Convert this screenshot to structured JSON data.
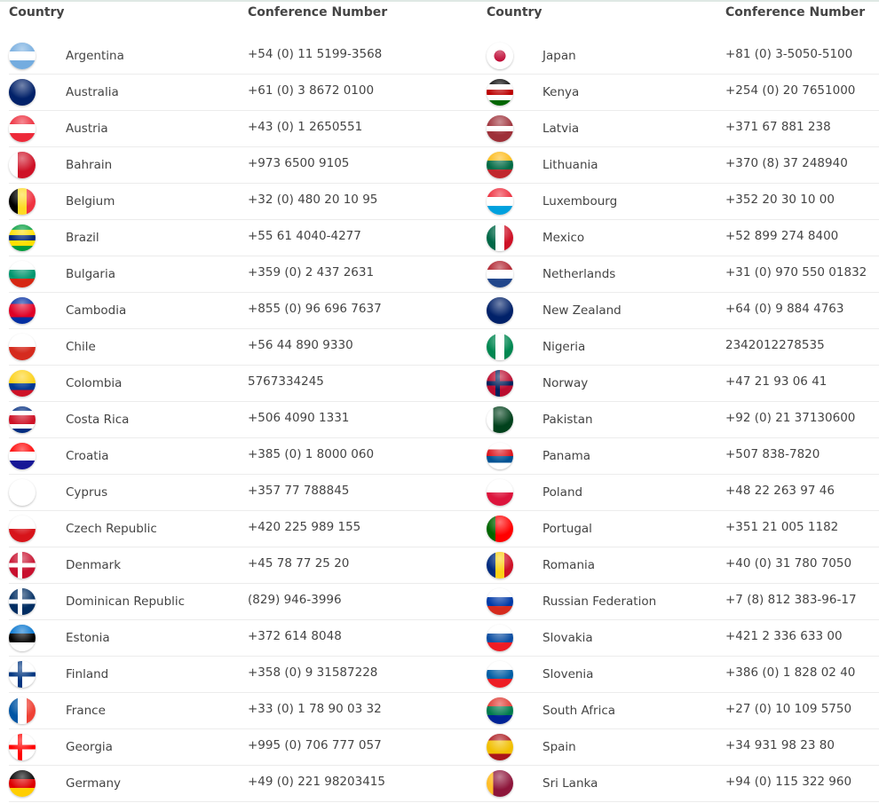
{
  "headers": {
    "country": "Country",
    "number": "Conference Number"
  },
  "left": [
    {
      "country": "Argentina",
      "number": "+54 (0) 11 5199-3568",
      "flag": {
        "dir": "h",
        "colors": [
          "#74acdf",
          "#ffffff",
          "#74acdf"
        ]
      }
    },
    {
      "country": "Australia",
      "number": "+61 (0) 3 8672 0100",
      "flag": {
        "dir": "h",
        "colors": [
          "#012169"
        ]
      }
    },
    {
      "country": "Austria",
      "number": "+43 (0) 1 2650551",
      "flag": {
        "dir": "h",
        "colors": [
          "#ed2939",
          "#ffffff",
          "#ed2939"
        ]
      }
    },
    {
      "country": "Bahrain",
      "number": "+973 6500 9105",
      "flag": {
        "dir": "v",
        "colors": [
          "#ffffff",
          "#ce1126",
          "#ce1126"
        ]
      }
    },
    {
      "country": "Belgium",
      "number": "+32 (0) 480 20 10 95",
      "flag": {
        "dir": "v",
        "colors": [
          "#000000",
          "#fdda24",
          "#ef3340"
        ]
      }
    },
    {
      "country": "Brazil",
      "number": "+55 61 4040-4277",
      "flag": {
        "dir": "h",
        "colors": [
          "#009c3b",
          "#ffdf00",
          "#002776",
          "#ffdf00",
          "#009c3b"
        ]
      }
    },
    {
      "country": "Bulgaria",
      "number": "+359 (0) 2 437 2631",
      "flag": {
        "dir": "h",
        "colors": [
          "#ffffff",
          "#00966e",
          "#d62612"
        ]
      }
    },
    {
      "country": "Cambodia",
      "number": "+855 (0) 96 696 7637",
      "flag": {
        "dir": "h",
        "colors": [
          "#032ea1",
          "#e00025",
          "#e00025",
          "#032ea1"
        ]
      }
    },
    {
      "country": "Chile",
      "number": "+56 44 890 9330",
      "flag": {
        "dir": "h",
        "colors": [
          "#ffffff",
          "#d52b1e"
        ]
      }
    },
    {
      "country": "Colombia",
      "number": "5767334245",
      "flag": {
        "dir": "h",
        "colors": [
          "#fcd116",
          "#fcd116",
          "#003893",
          "#ce1126"
        ]
      }
    },
    {
      "country": "Costa Rica",
      "number": "+506 4090 1331",
      "flag": {
        "dir": "h",
        "colors": [
          "#002b7f",
          "#ffffff",
          "#ce1126",
          "#ce1126",
          "#ffffff",
          "#002b7f"
        ]
      }
    },
    {
      "country": "Croatia",
      "number": "+385 (0) 1 8000 060",
      "flag": {
        "dir": "h",
        "colors": [
          "#ff0000",
          "#ffffff",
          "#171796"
        ]
      }
    },
    {
      "country": "Cyprus",
      "number": "+357 77 788845",
      "flag": {
        "dir": "h",
        "colors": [
          "#ffffff"
        ]
      }
    },
    {
      "country": "Czech Republic",
      "number": "+420 225 989 155",
      "flag": {
        "dir": "h",
        "colors": [
          "#ffffff",
          "#d7141a"
        ]
      }
    },
    {
      "country": "Denmark",
      "number": "+45 78 77 25 20",
      "flag": {
        "dir": "cross",
        "colors": [
          "#c8102e",
          "#ffffff"
        ]
      }
    },
    {
      "country": "Dominican Republic",
      "number": "(829) 946-3996",
      "flag": {
        "dir": "cross",
        "colors": [
          "#002d62",
          "#ffffff"
        ]
      }
    },
    {
      "country": "Estonia",
      "number": "+372 614 8048",
      "flag": {
        "dir": "h",
        "colors": [
          "#0072ce",
          "#000000",
          "#ffffff"
        ]
      }
    },
    {
      "country": "Finland",
      "number": "+358 (0) 9 31587228",
      "flag": {
        "dir": "cross",
        "colors": [
          "#ffffff",
          "#003580"
        ]
      }
    },
    {
      "country": "France",
      "number": "+33 (0) 1 78 90 03 32",
      "flag": {
        "dir": "v",
        "colors": [
          "#0055a4",
          "#ffffff",
          "#ef4135"
        ]
      }
    },
    {
      "country": "Georgia",
      "number": "+995 (0) 706 777 057",
      "flag": {
        "dir": "cross",
        "colors": [
          "#ffffff",
          "#ff0000"
        ]
      }
    },
    {
      "country": "Germany",
      "number": "+49 (0) 221 98203415",
      "flag": {
        "dir": "h",
        "colors": [
          "#000000",
          "#dd0000",
          "#ffce00"
        ]
      }
    }
  ],
  "right": [
    {
      "country": "Japan",
      "number": "+81 (0) 3-5050-5100",
      "flag": {
        "dir": "disc",
        "colors": [
          "#ffffff",
          "#bc002d"
        ]
      }
    },
    {
      "country": "Kenya",
      "number": "+254 (0) 20 7651000",
      "flag": {
        "dir": "h",
        "colors": [
          "#000000",
          "#ffffff",
          "#bb0000",
          "#ffffff",
          "#006600"
        ]
      }
    },
    {
      "country": "Latvia",
      "number": "+371 67 881 238",
      "flag": {
        "dir": "h",
        "colors": [
          "#9e3039",
          "#9e3039",
          "#ffffff",
          "#9e3039",
          "#9e3039"
        ]
      }
    },
    {
      "country": "Lithuania",
      "number": "+370 (8) 37 248940",
      "flag": {
        "dir": "h",
        "colors": [
          "#fdb913",
          "#006a44",
          "#c1272d"
        ]
      }
    },
    {
      "country": "Luxembourg",
      "number": "+352 20 30 10 00",
      "flag": {
        "dir": "h",
        "colors": [
          "#ed2939",
          "#ffffff",
          "#00a1de"
        ]
      }
    },
    {
      "country": "Mexico",
      "number": "+52 899 274 8400",
      "flag": {
        "dir": "v",
        "colors": [
          "#006847",
          "#ffffff",
          "#ce1126"
        ]
      }
    },
    {
      "country": "Netherlands",
      "number": "+31 (0) 970 550 01832",
      "flag": {
        "dir": "h",
        "colors": [
          "#ae1c28",
          "#ffffff",
          "#21468b"
        ]
      }
    },
    {
      "country": "New Zealand",
      "number": "+64 (0) 9 884 4763",
      "flag": {
        "dir": "h",
        "colors": [
          "#012169"
        ]
      }
    },
    {
      "country": "Nigeria",
      "number": "2342012278535",
      "flag": {
        "dir": "v",
        "colors": [
          "#008751",
          "#ffffff",
          "#008751"
        ]
      }
    },
    {
      "country": "Norway",
      "number": "+47 21 93 06 41",
      "flag": {
        "dir": "cross",
        "colors": [
          "#ba0c2f",
          "#00205b"
        ]
      }
    },
    {
      "country": "Pakistan",
      "number": "+92 (0) 21 37130600",
      "flag": {
        "dir": "v",
        "colors": [
          "#ffffff",
          "#01411c",
          "#01411c",
          "#01411c"
        ]
      }
    },
    {
      "country": "Panama",
      "number": "+507 838-7820",
      "flag": {
        "dir": "h",
        "colors": [
          "#ffffff",
          "#da121a",
          "#005293",
          "#ffffff"
        ]
      }
    },
    {
      "country": "Poland",
      "number": "+48 22 263 97 46",
      "flag": {
        "dir": "h",
        "colors": [
          "#ffffff",
          "#dc143c"
        ]
      }
    },
    {
      "country": "Portugal",
      "number": "+351 21 005 1182",
      "flag": {
        "dir": "v",
        "colors": [
          "#006600",
          "#ff0000",
          "#ff0000"
        ]
      }
    },
    {
      "country": "Romania",
      "number": "+40 (0) 31 780 7050",
      "flag": {
        "dir": "v",
        "colors": [
          "#002b7f",
          "#fcd116",
          "#ce1126"
        ]
      }
    },
    {
      "country": "Russian Federation",
      "number": "+7 (8) 812 383-96-17",
      "flag": {
        "dir": "h",
        "colors": [
          "#ffffff",
          "#0039a6",
          "#d52b1e"
        ]
      }
    },
    {
      "country": "Slovakia",
      "number": "+421 2 336 633 00",
      "flag": {
        "dir": "h",
        "colors": [
          "#ffffff",
          "#0b4ea2",
          "#ee1c25"
        ]
      }
    },
    {
      "country": "Slovenia",
      "number": "+386 (0) 1 828 02 40",
      "flag": {
        "dir": "h",
        "colors": [
          "#ffffff",
          "#005da4",
          "#ed1c24"
        ]
      }
    },
    {
      "country": "South Africa",
      "number": "+27 (0) 10 109 5750",
      "flag": {
        "dir": "h",
        "colors": [
          "#de3831",
          "#007a4d",
          "#002395"
        ]
      }
    },
    {
      "country": "Spain",
      "number": "+34 931 98 23 80",
      "flag": {
        "dir": "h",
        "colors": [
          "#aa151b",
          "#f1bf00",
          "#f1bf00",
          "#aa151b"
        ]
      }
    },
    {
      "country": "Sri Lanka",
      "number": "+94 (0) 115 322 960",
      "flag": {
        "dir": "v",
        "colors": [
          "#ffbe29",
          "#8d153a",
          "#8d153a",
          "#8d153a"
        ]
      }
    }
  ]
}
